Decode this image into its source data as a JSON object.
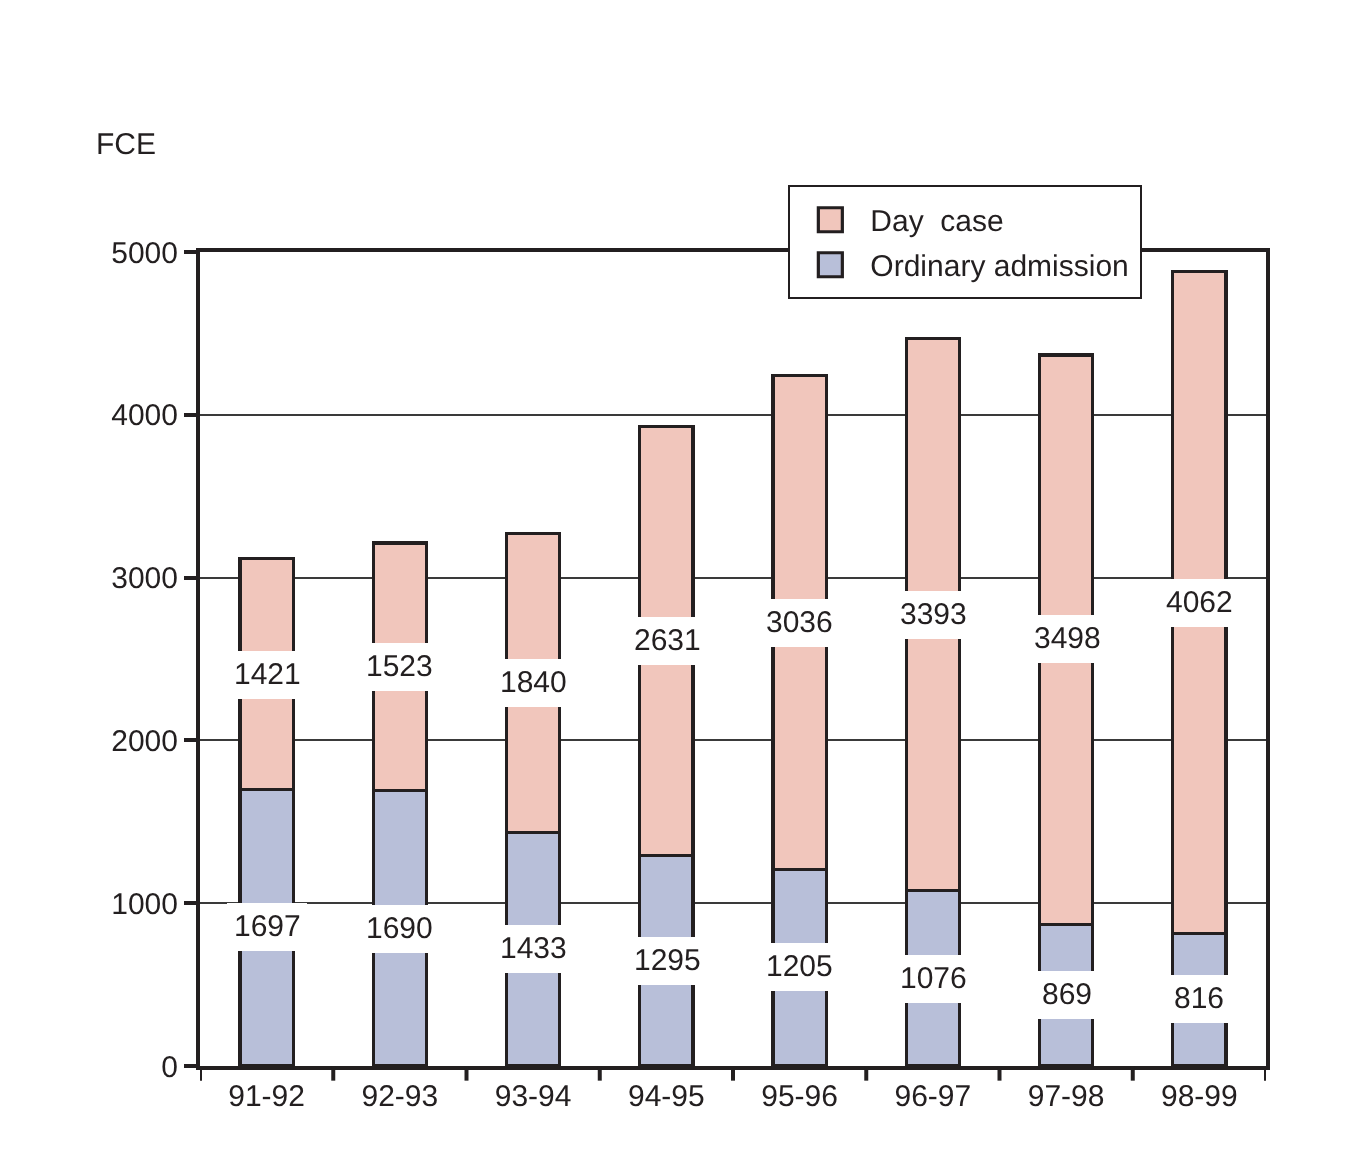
{
  "chart_data": {
    "type": "bar",
    "stacked": true,
    "ylabel": "FCE",
    "categories": [
      "91-92",
      "92-93",
      "93-94",
      "94-95",
      "95-96",
      "96-97",
      "97-98",
      "98-99"
    ],
    "series": [
      {
        "name": "Ordinary admission",
        "color": "#b8bfd9",
        "values": [
          1697,
          1690,
          1433,
          1295,
          1205,
          1076,
          869,
          816
        ]
      },
      {
        "name": "Day  case",
        "color": "#f1c6bc",
        "values": [
          1421,
          1523,
          1840,
          2631,
          3036,
          3393,
          3498,
          4062
        ]
      }
    ],
    "ylim": [
      0,
      5000
    ],
    "yticks": [
      0,
      1000,
      2000,
      3000,
      4000,
      5000
    ],
    "grid": "y",
    "legend": "top right",
    "data_labels": true
  }
}
